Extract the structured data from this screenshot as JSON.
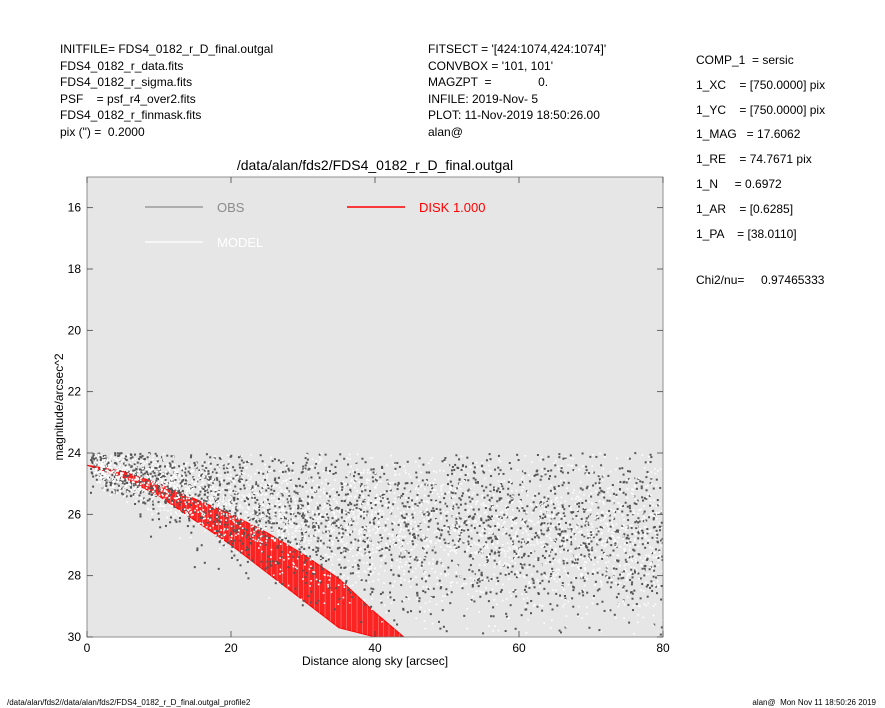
{
  "header_left": [
    "INITFILE= FDS4_0182_r_D_final.outgal",
    "FDS4_0182_r_data.fits",
    "FDS4_0182_r_sigma.fits",
    "PSF    = psf_r4_over2.fits",
    "FDS4_0182_r_finmask.fits",
    "pix (\") =  0.2000"
  ],
  "header_mid": [
    "FITSECT = '[424:1074,424:1074]'",
    "CONVBOX = '101, 101'",
    "MAGZPT  =              0.",
    "INFILE: 2019-Nov- 5",
    "PLOT: 11-Nov-2019 18:50:26.00",
    "alan@"
  ],
  "params": [
    "COMP_1  = sersic",
    "1_XC    = [750.0000] pix",
    "1_YC    = [750.0000] pix",
    "1_MAG   = 17.6062",
    "1_RE    = 74.7671 pix",
    "1_N     = 0.6972",
    "1_AR    = [0.6285]",
    "1_PA    = [38.0110]"
  ],
  "chi2": "Chi2/nu=     0.97465333",
  "footer_left": "/data/alan/fds2//data/alan/fds2/FDS4_0182_r_D_final.outgal_profile2",
  "footer_right": "alan@  Mon Nov 11 18:50:26 2019",
  "chart_data": {
    "type": "scatter",
    "title": "/data/alan/fds2/FDS4_0182_r_D_final.outgal",
    "xlabel": "Distance along sky [arcsec]",
    "ylabel": "magnitude/arcsec^2",
    "xlim": [
      0,
      80
    ],
    "ylim": [
      30,
      15
    ],
    "y_inverted": true,
    "x_ticks": [
      0,
      20,
      40,
      60,
      80
    ],
    "y_ticks": [
      16,
      18,
      20,
      22,
      24,
      26,
      28,
      30
    ],
    "background": "#e6e6e6",
    "legend": [
      {
        "label": "OBS",
        "color": "#8c8c8c"
      },
      {
        "label": "MODEL",
        "color": "#ffffff"
      },
      {
        "label": "DISK  1.000",
        "color": "#ff0000"
      }
    ],
    "series": [
      {
        "name": "OBS",
        "color": "#555555",
        "x": [
          1,
          5,
          10,
          15,
          20,
          25,
          30,
          35,
          40,
          50,
          60,
          70,
          80
        ],
        "y": [
          24.3,
          24.6,
          24.9,
          25.2,
          25.5,
          25.8,
          26.0,
          26.1,
          26.2,
          26.3,
          26.4,
          26.5,
          26.6
        ]
      },
      {
        "name": "MODEL",
        "color": "#ffffff",
        "x": [
          0,
          10,
          20,
          30,
          40,
          50,
          60,
          70,
          80
        ],
        "y": [
          24.4,
          25.0,
          25.6,
          26.0,
          26.3,
          26.5,
          26.6,
          26.7,
          26.8
        ]
      },
      {
        "name": "DISK  1.000",
        "color": "#ff0000",
        "x": [
          0,
          5,
          10,
          15,
          20,
          25,
          30,
          35,
          40,
          44
        ],
        "y_inner": [
          24.4,
          24.8,
          25.4,
          26.2,
          27.0,
          27.9,
          28.8,
          29.7,
          30.0,
          30.0
        ],
        "y_outer": [
          24.4,
          24.6,
          25.0,
          25.5,
          26.0,
          26.6,
          27.3,
          28.1,
          29.2,
          30.0
        ]
      }
    ]
  }
}
